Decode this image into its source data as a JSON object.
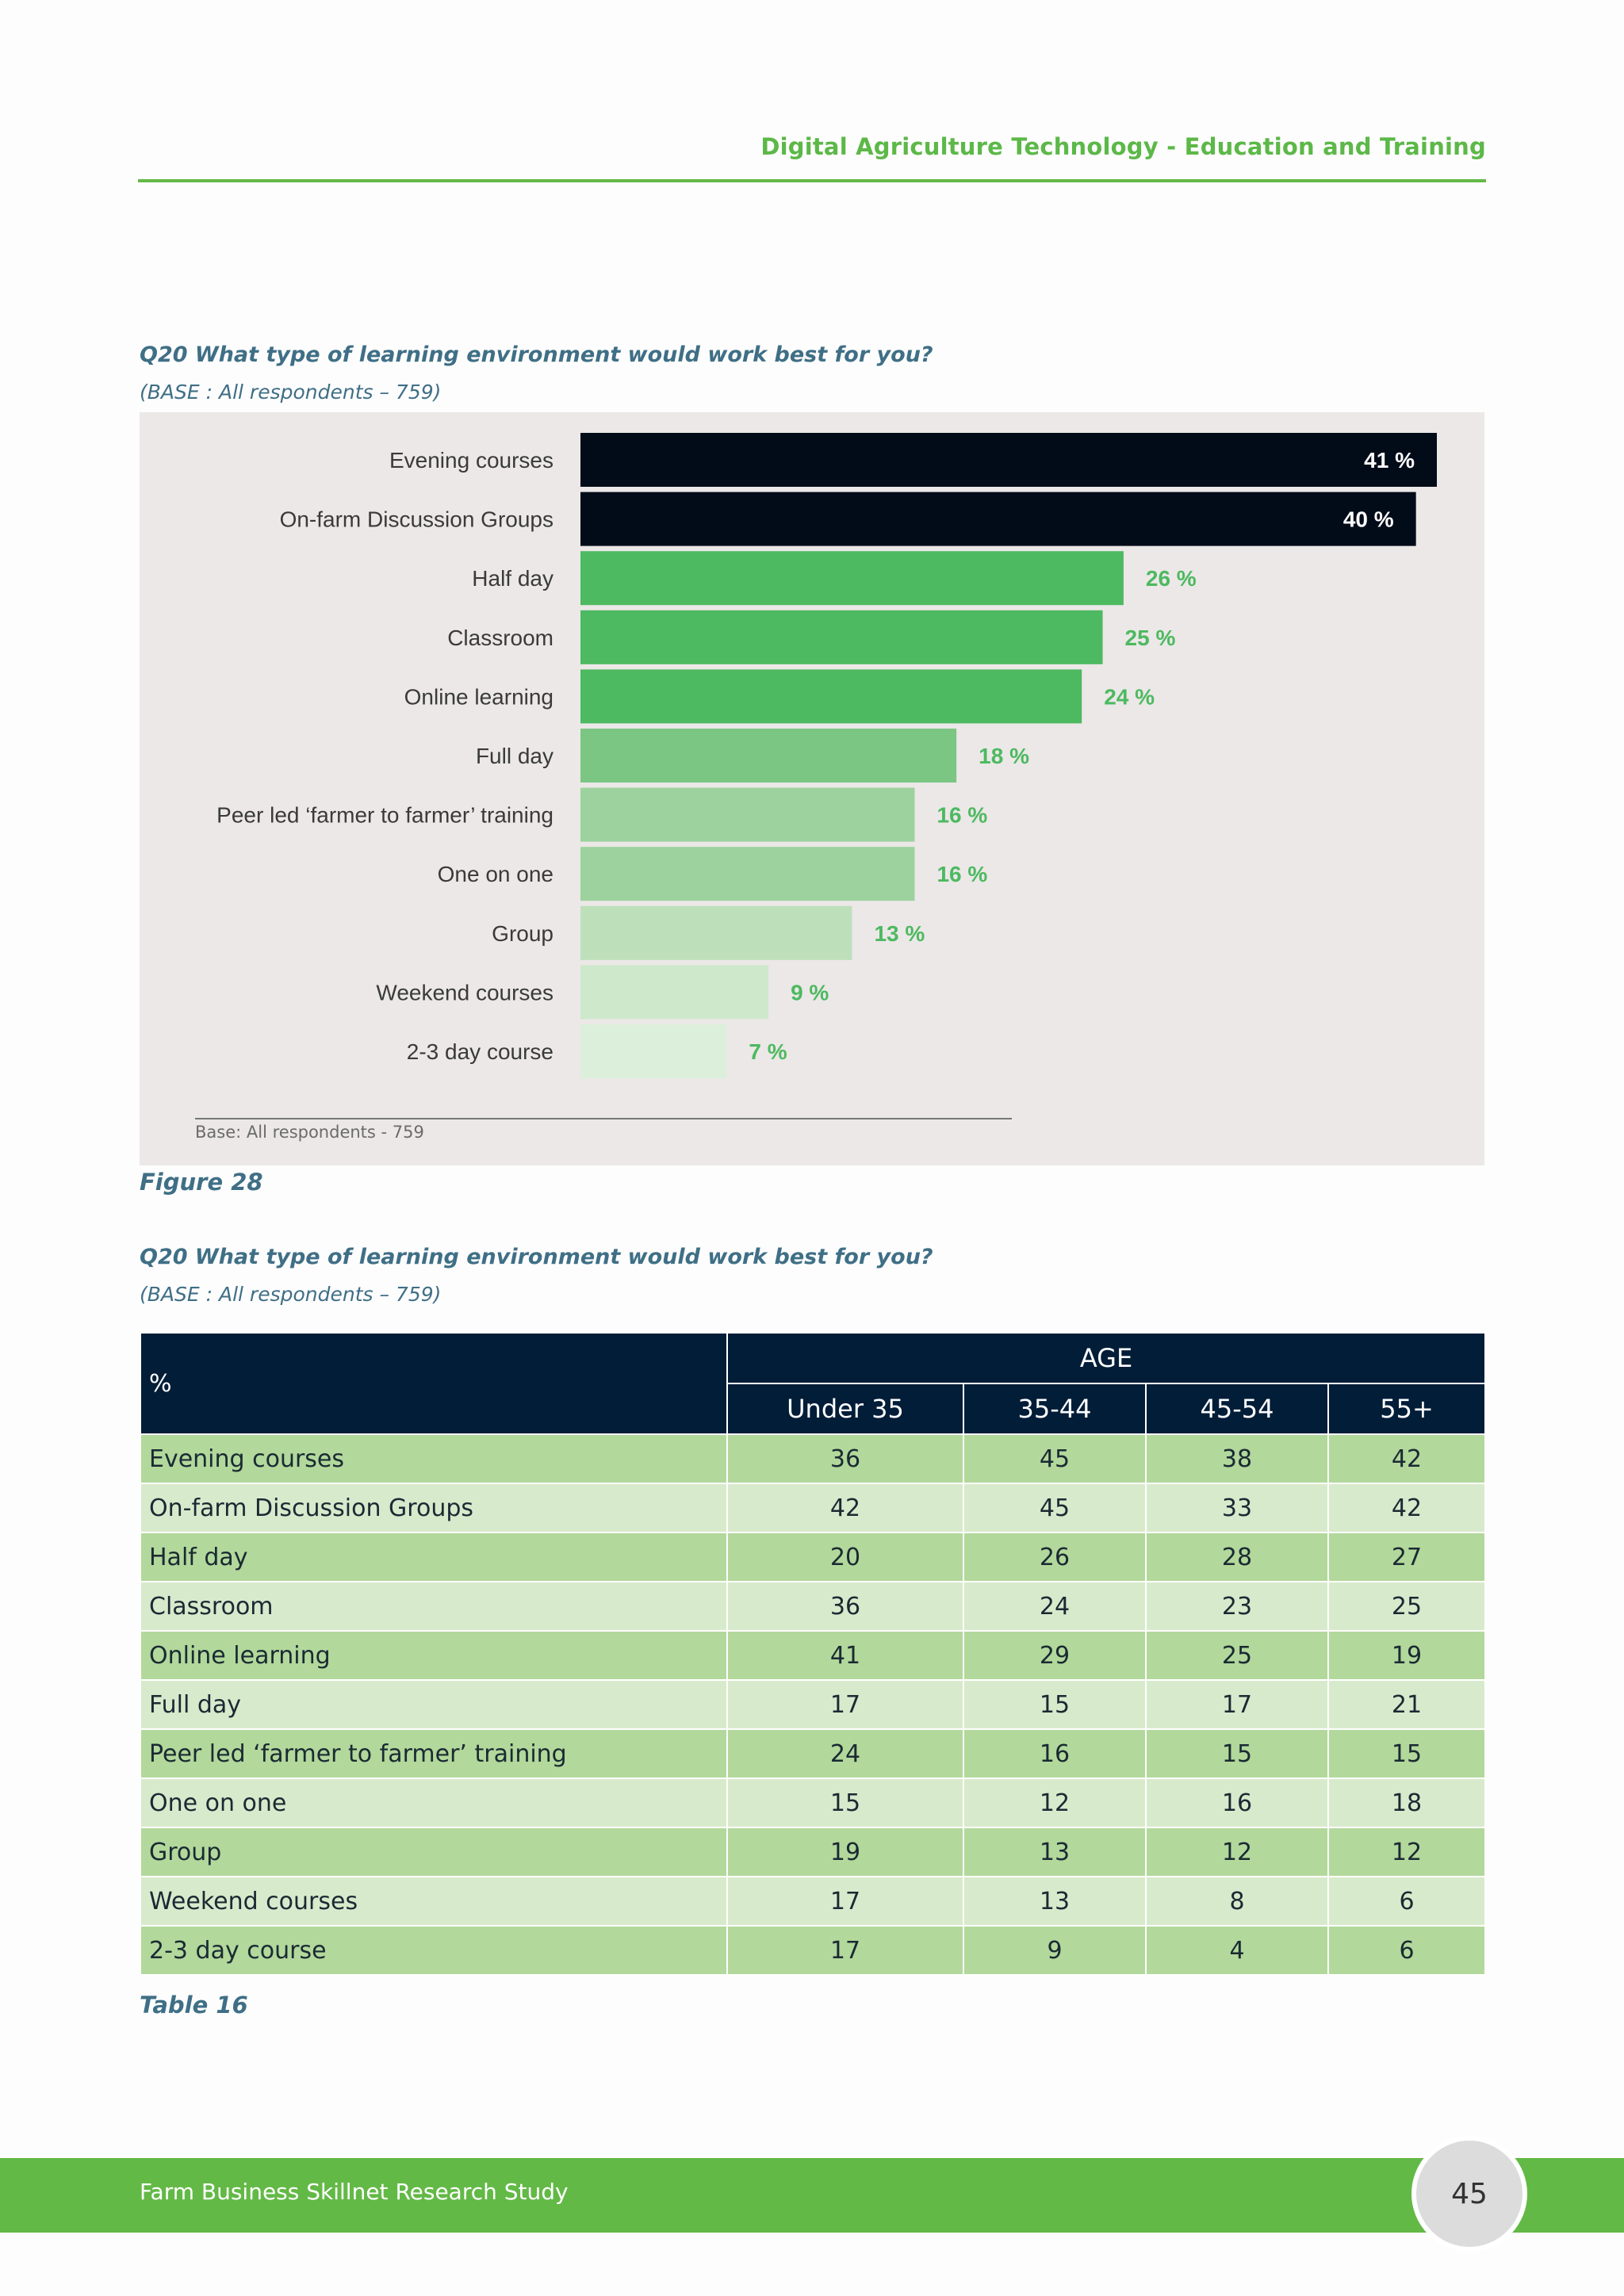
{
  "header": {
    "title": "Digital Agriculture Technology - Education and Training"
  },
  "figure": {
    "question": "Q20 What type of learning environment would work best for you?",
    "base": "(BASE : All respondents – 759)",
    "base_note": "Base: All respondents - 759",
    "caption": "Figure 28"
  },
  "chart_data": {
    "type": "bar",
    "orientation": "horizontal",
    "categories": [
      "Evening courses",
      "On-farm Discussion Groups",
      "Half day",
      "Classroom",
      "Online learning",
      "Full day",
      "Peer led ‘farmer to farmer’ training",
      "One on one",
      "Group",
      "Weekend courses",
      "2-3 day course"
    ],
    "values": [
      41,
      40,
      26,
      25,
      24,
      18,
      16,
      16,
      13,
      9,
      7
    ],
    "value_labels": [
      "41 %",
      "40 %",
      "26 %",
      "25 %",
      "24 %",
      "18 %",
      "16 %",
      "16 %",
      "13 %",
      "9 %",
      "7 %"
    ],
    "colors": [
      "#020b18",
      "#020b18",
      "#4db960",
      "#4db960",
      "#4db960",
      "#7bc683",
      "#9dd29e",
      "#9dd29e",
      "#bde0bb",
      "#cde8cb",
      "#dcefda"
    ],
    "label_colors": [
      "#ffffff",
      "#ffffff",
      "#4db960",
      "#4db960",
      "#4db960",
      "#4db960",
      "#4db960",
      "#4db960",
      "#4db960",
      "#4db960",
      "#4db960"
    ],
    "xlim": [
      0,
      41
    ]
  },
  "table": {
    "question": "Q20 What type of learning environment would work best for you?",
    "base": "(BASE : All respondents – 759)",
    "group_header": "AGE",
    "first_col_header": "%",
    "columns": [
      "Under 35",
      "35-44",
      "45-54",
      "55+"
    ],
    "rows": [
      {
        "label": "Evening courses",
        "values": [
          "36",
          "45",
          "38",
          "42"
        ]
      },
      {
        "label": "On-farm Discussion Groups",
        "values": [
          "42",
          "45",
          "33",
          "42"
        ]
      },
      {
        "label": "Half day",
        "values": [
          "20",
          "26",
          "28",
          "27"
        ]
      },
      {
        "label": "Classroom",
        "values": [
          "36",
          "24",
          "23",
          "25"
        ]
      },
      {
        "label": "Online learning",
        "values": [
          "41",
          "29",
          "25",
          "19"
        ]
      },
      {
        "label": "Full day",
        "values": [
          "17",
          "15",
          "17",
          "21"
        ]
      },
      {
        "label": "Peer led ‘farmer to farmer’ training",
        "values": [
          "24",
          "16",
          "15",
          "15"
        ]
      },
      {
        "label": "One on one",
        "values": [
          "15",
          "12",
          "16",
          "18"
        ]
      },
      {
        "label": "Group",
        "values": [
          "19",
          "13",
          "12",
          "12"
        ]
      },
      {
        "label": "Weekend courses",
        "values": [
          "17",
          "13",
          "8",
          "6"
        ]
      },
      {
        "label": "2-3 day course",
        "values": [
          "17",
          "9",
          "4",
          "6"
        ]
      }
    ],
    "caption": "Table 16"
  },
  "footer": {
    "text": "Farm Business Skillnet Research Study",
    "page_number": "45"
  }
}
